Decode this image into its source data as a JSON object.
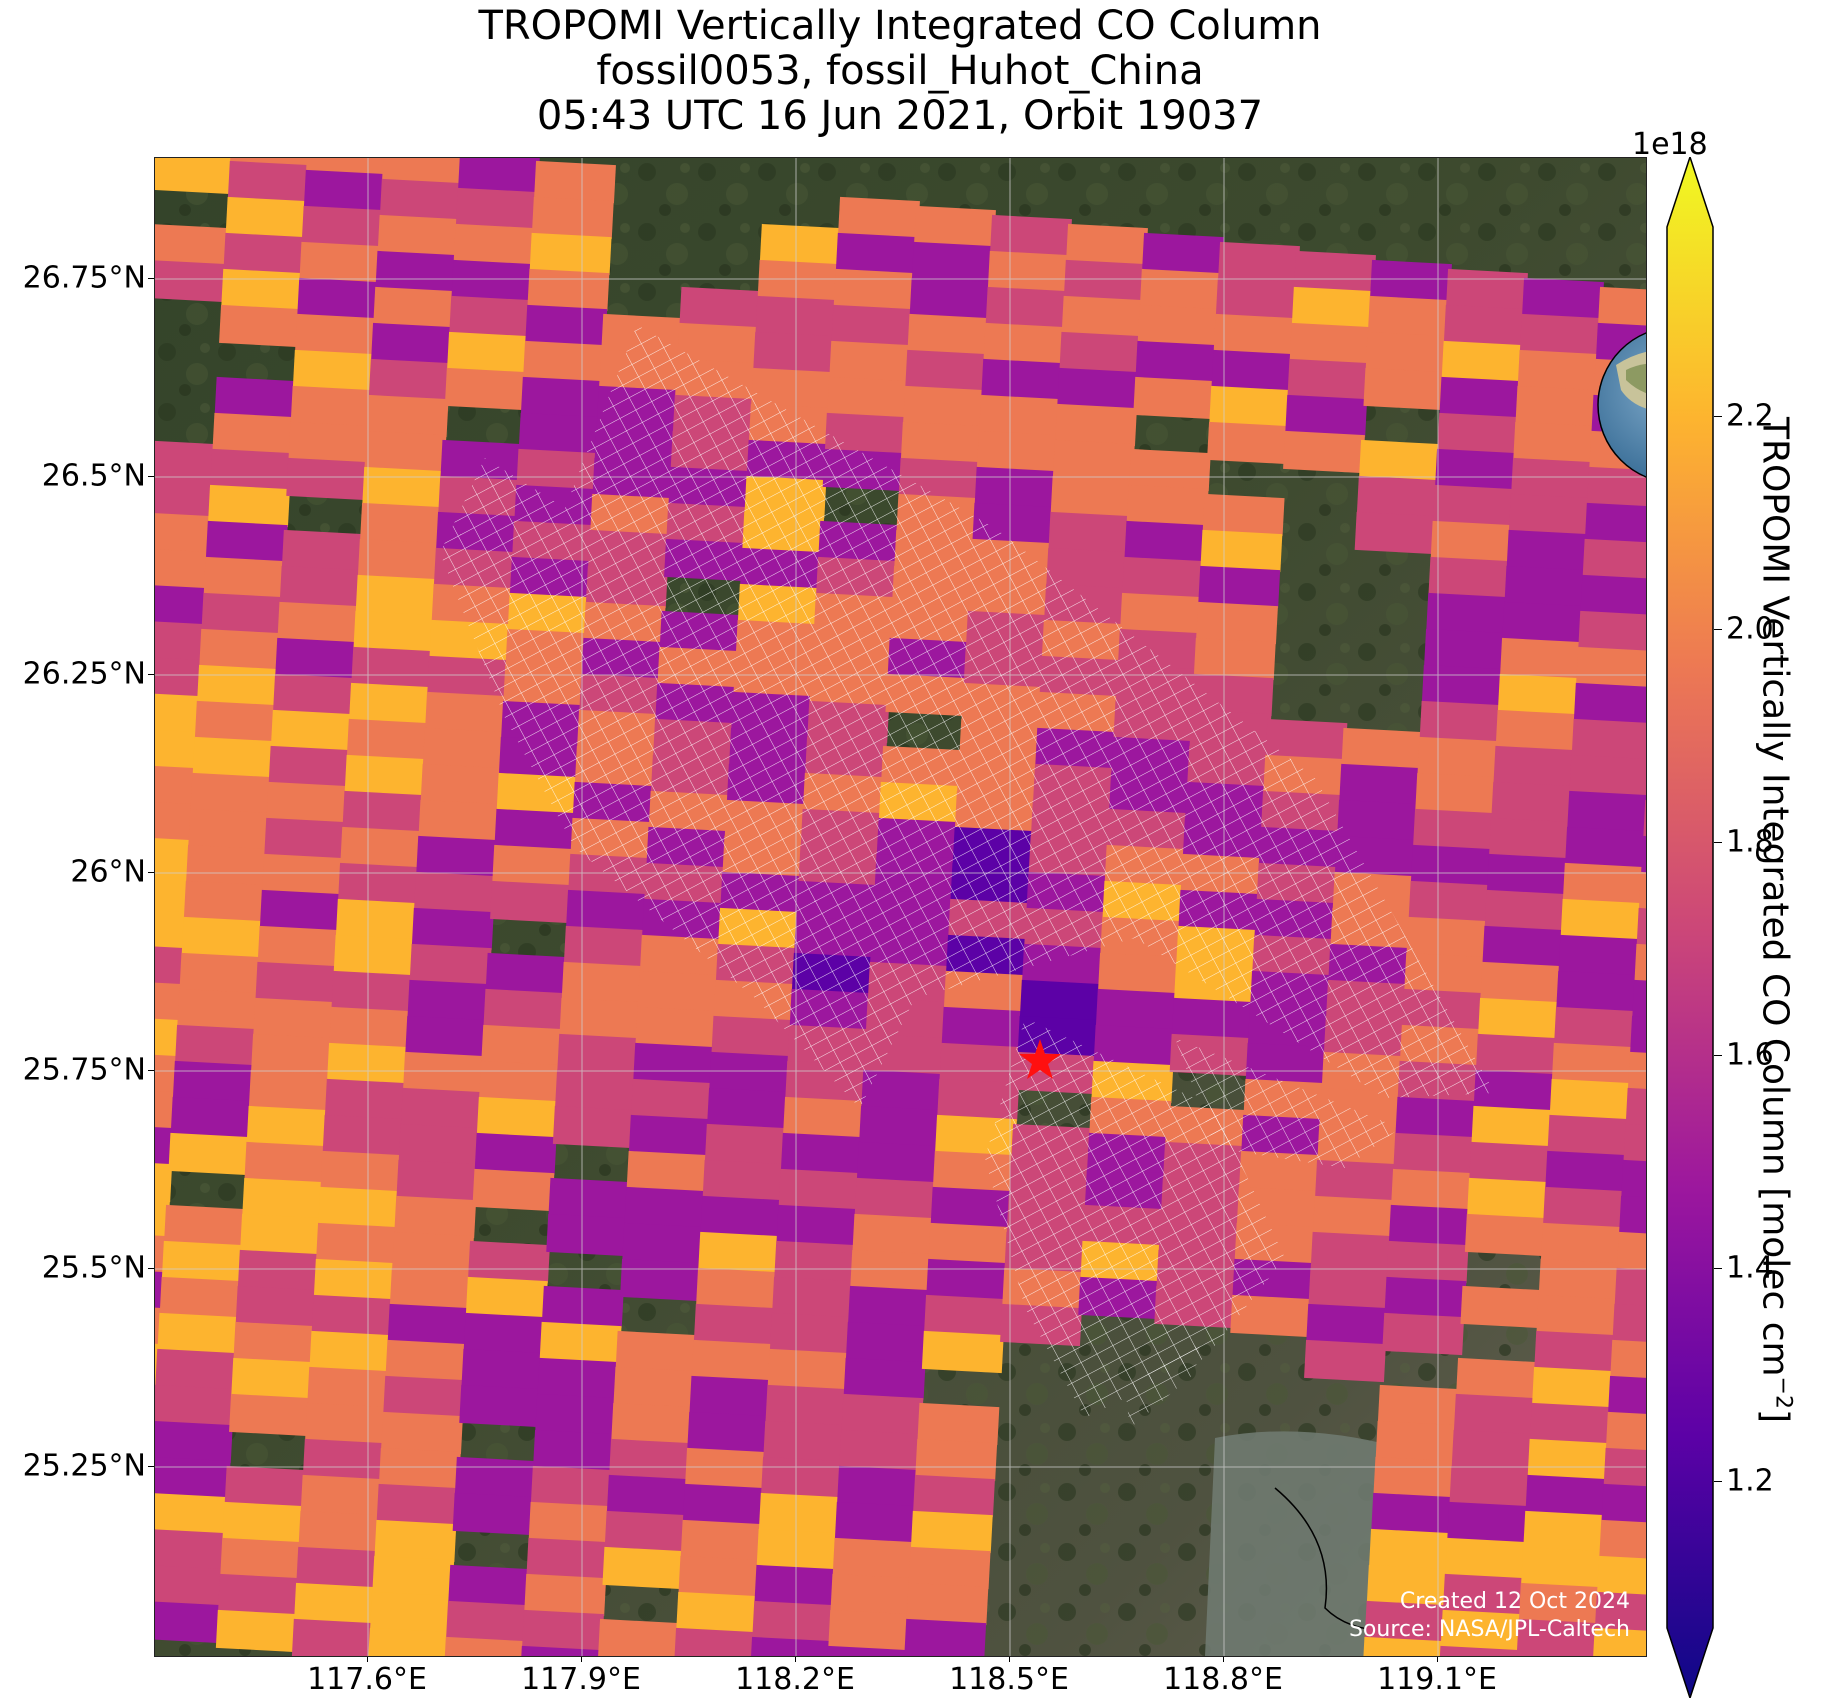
{
  "title": {
    "line1": "TROPOMI Vertically Integrated CO Column",
    "line2": "fossil0053, fossil_Huhot_China",
    "line3": "05:43 UTC 16 Jun 2021, Orbit 19037"
  },
  "map": {
    "lat_labels": [
      "26.75°N",
      "26.5°N",
      "26.25°N",
      "26°N",
      "25.75°N",
      "25.5°N",
      "25.25°N"
    ],
    "lon_labels": [
      "117.6°E",
      "117.9°E",
      "118.2°E",
      "118.5°E",
      "118.8°E",
      "119.1°E"
    ],
    "target_marker": "red-star",
    "credit_line1": "Created 12 Oct 2024",
    "credit_line2": "Source: NASA/JPL-Caltech",
    "inset": "globe-east-asia-with-red-star",
    "basemap": "satellite-terrain"
  },
  "colorbar": {
    "scale_label": "1e18",
    "label_main": "TROPOMI Vertically Integrated CO Column [molec cm",
    "label_exp": "−2",
    "label_close": "]",
    "ticks": [
      "2.2",
      "2.0",
      "1.8",
      "1.6",
      "1.4",
      "1.2"
    ],
    "colormap": "plasma",
    "colors": [
      "#0d0887",
      "#5c01a6",
      "#9c179e",
      "#cc4778",
      "#ed7953",
      "#fdb42f",
      "#f0f921"
    ]
  }
}
